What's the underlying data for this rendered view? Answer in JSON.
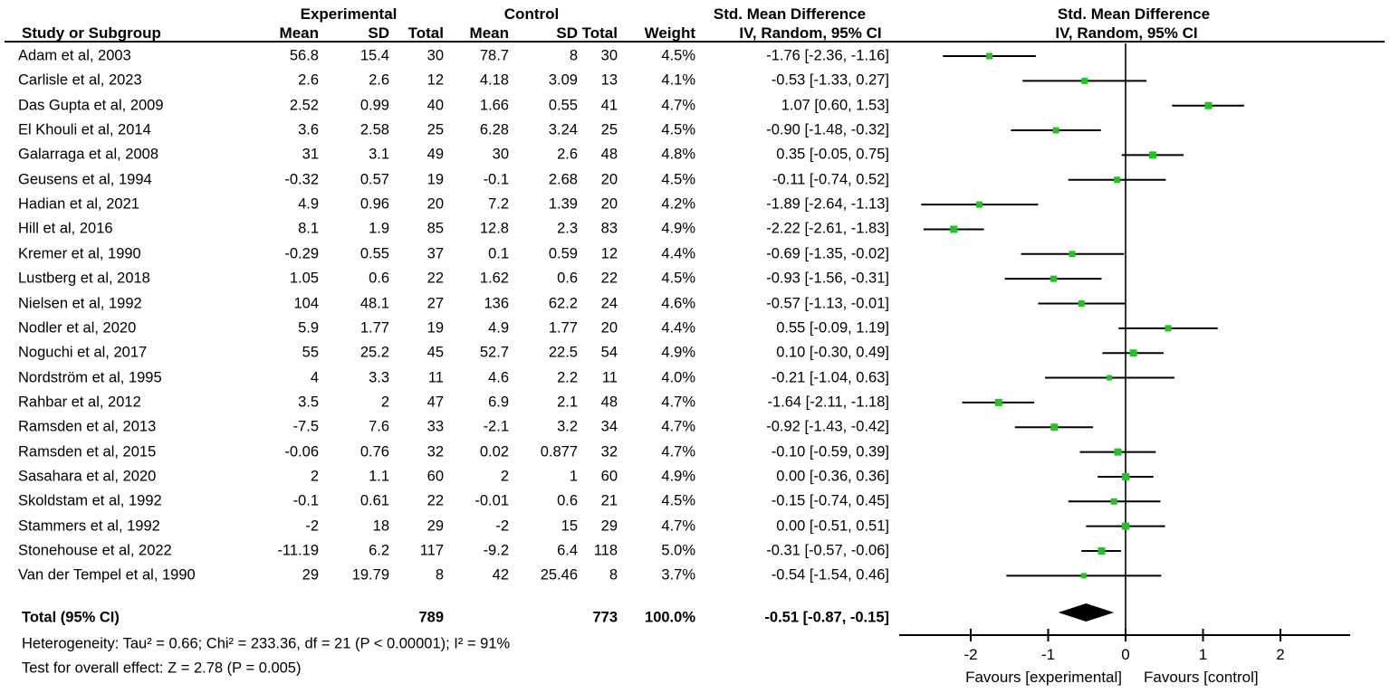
{
  "header": {
    "study_col": "Study or Subgroup",
    "experimental_group": "Experimental",
    "control_group": "Control",
    "exp_mean": "Mean",
    "exp_sd": "SD",
    "exp_total": "Total",
    "ctrl_mean": "Mean",
    "ctrl_sd": "SD",
    "ctrl_total": "Total",
    "weight": "Weight",
    "smd_title": "Std. Mean Difference",
    "smd_subtitle": "IV, Random, 95% CI",
    "plot_title": "Std. Mean Difference",
    "plot_subtitle": "IV, Random, 95% CI"
  },
  "studies": [
    {
      "name": "Adam et al, 2003",
      "exp_mean": "56.8",
      "exp_sd": "15.4",
      "exp_total": "30",
      "ctrl_mean": "78.7",
      "ctrl_sd": "8",
      "ctrl_total": "30",
      "weight": "4.5%",
      "ci_text": "-1.76 [-2.36, -1.16]"
    },
    {
      "name": "Carlisle et al, 2023",
      "exp_mean": "2.6",
      "exp_sd": "2.6",
      "exp_total": "12",
      "ctrl_mean": "4.18",
      "ctrl_sd": "3.09",
      "ctrl_total": "13",
      "weight": "4.1%",
      "ci_text": "-0.53 [-1.33, 0.27]"
    },
    {
      "name": "Das Gupta et al, 2009",
      "exp_mean": "2.52",
      "exp_sd": "0.99",
      "exp_total": "40",
      "ctrl_mean": "1.66",
      "ctrl_sd": "0.55",
      "ctrl_total": "41",
      "weight": "4.7%",
      "ci_text": "1.07 [0.60, 1.53]"
    },
    {
      "name": "El Khouli et al, 2014",
      "exp_mean": "3.6",
      "exp_sd": "2.58",
      "exp_total": "25",
      "ctrl_mean": "6.28",
      "ctrl_sd": "3.24",
      "ctrl_total": "25",
      "weight": "4.5%",
      "ci_text": "-0.90 [-1.48, -0.32]"
    },
    {
      "name": "Galarraga et al, 2008",
      "exp_mean": "31",
      "exp_sd": "3.1",
      "exp_total": "49",
      "ctrl_mean": "30",
      "ctrl_sd": "2.6",
      "ctrl_total": "48",
      "weight": "4.8%",
      "ci_text": "0.35 [-0.05, 0.75]"
    },
    {
      "name": "Geusens et al, 1994",
      "exp_mean": "-0.32",
      "exp_sd": "0.57",
      "exp_total": "19",
      "ctrl_mean": "-0.1",
      "ctrl_sd": "2.68",
      "ctrl_total": "20",
      "weight": "4.5%",
      "ci_text": "-0.11 [-0.74, 0.52]"
    },
    {
      "name": "Hadian et al, 2021",
      "exp_mean": "4.9",
      "exp_sd": "0.96",
      "exp_total": "20",
      "ctrl_mean": "7.2",
      "ctrl_sd": "1.39",
      "ctrl_total": "20",
      "weight": "4.2%",
      "ci_text": "-1.89 [-2.64, -1.13]"
    },
    {
      "name": "Hill et al, 2016",
      "exp_mean": "8.1",
      "exp_sd": "1.9",
      "exp_total": "85",
      "ctrl_mean": "12.8",
      "ctrl_sd": "2.3",
      "ctrl_total": "83",
      "weight": "4.9%",
      "ci_text": "-2.22 [-2.61, -1.83]"
    },
    {
      "name": "Kremer et al, 1990",
      "exp_mean": "-0.29",
      "exp_sd": "0.55",
      "exp_total": "37",
      "ctrl_mean": "0.1",
      "ctrl_sd": "0.59",
      "ctrl_total": "12",
      "weight": "4.4%",
      "ci_text": "-0.69 [-1.35, -0.02]"
    },
    {
      "name": "Lustberg et al, 2018",
      "exp_mean": "1.05",
      "exp_sd": "0.6",
      "exp_total": "22",
      "ctrl_mean": "1.62",
      "ctrl_sd": "0.6",
      "ctrl_total": "22",
      "weight": "4.5%",
      "ci_text": "-0.93 [-1.56, -0.31]"
    },
    {
      "name": "Nielsen et al, 1992",
      "exp_mean": "104",
      "exp_sd": "48.1",
      "exp_total": "27",
      "ctrl_mean": "136",
      "ctrl_sd": "62.2",
      "ctrl_total": "24",
      "weight": "4.6%",
      "ci_text": "-0.57 [-1.13, -0.01]"
    },
    {
      "name": "Nodler et al, 2020",
      "exp_mean": "5.9",
      "exp_sd": "1.77",
      "exp_total": "19",
      "ctrl_mean": "4.9",
      "ctrl_sd": "1.77",
      "ctrl_total": "20",
      "weight": "4.4%",
      "ci_text": "0.55 [-0.09, 1.19]"
    },
    {
      "name": "Noguchi et al, 2017",
      "exp_mean": "55",
      "exp_sd": "25.2",
      "exp_total": "45",
      "ctrl_mean": "52.7",
      "ctrl_sd": "22.5",
      "ctrl_total": "54",
      "weight": "4.9%",
      "ci_text": "0.10 [-0.30, 0.49]"
    },
    {
      "name": "Nordström et al, 1995",
      "exp_mean": "4",
      "exp_sd": "3.3",
      "exp_total": "11",
      "ctrl_mean": "4.6",
      "ctrl_sd": "2.2",
      "ctrl_total": "11",
      "weight": "4.0%",
      "ci_text": "-0.21 [-1.04, 0.63]"
    },
    {
      "name": "Rahbar et al, 2012",
      "exp_mean": "3.5",
      "exp_sd": "2",
      "exp_total": "47",
      "ctrl_mean": "6.9",
      "ctrl_sd": "2.1",
      "ctrl_total": "48",
      "weight": "4.7%",
      "ci_text": "-1.64 [-2.11, -1.18]"
    },
    {
      "name": "Ramsden et al, 2013",
      "exp_mean": "-7.5",
      "exp_sd": "7.6",
      "exp_total": "33",
      "ctrl_mean": "-2.1",
      "ctrl_sd": "3.2",
      "ctrl_total": "34",
      "weight": "4.7%",
      "ci_text": "-0.92 [-1.43, -0.42]"
    },
    {
      "name": "Ramsden et al, 2015",
      "exp_mean": "-0.06",
      "exp_sd": "0.76",
      "exp_total": "32",
      "ctrl_mean": "0.02",
      "ctrl_sd": "0.877",
      "ctrl_total": "32",
      "weight": "4.7%",
      "ci_text": "-0.10 [-0.59, 0.39]"
    },
    {
      "name": "Sasahara et al, 2020",
      "exp_mean": "2",
      "exp_sd": "1.1",
      "exp_total": "60",
      "ctrl_mean": "2",
      "ctrl_sd": "1",
      "ctrl_total": "60",
      "weight": "4.9%",
      "ci_text": "0.00 [-0.36, 0.36]"
    },
    {
      "name": "Skoldstam et al, 1992",
      "exp_mean": "-0.1",
      "exp_sd": "0.61",
      "exp_total": "22",
      "ctrl_mean": "-0.01",
      "ctrl_sd": "0.6",
      "ctrl_total": "21",
      "weight": "4.5%",
      "ci_text": "-0.15 [-0.74, 0.45]"
    },
    {
      "name": "Stammers et al, 1992",
      "exp_mean": "-2",
      "exp_sd": "18",
      "exp_total": "29",
      "ctrl_mean": "-2",
      "ctrl_sd": "15",
      "ctrl_total": "29",
      "weight": "4.7%",
      "ci_text": "0.00 [-0.51, 0.51]"
    },
    {
      "name": "Stonehouse et al, 2022",
      "exp_mean": "-11.19",
      "exp_sd": "6.2",
      "exp_total": "117",
      "ctrl_mean": "-9.2",
      "ctrl_sd": "6.4",
      "ctrl_total": "118",
      "weight": "5.0%",
      "ci_text": "-0.31 [-0.57, -0.06]"
    },
    {
      "name": "Van der Tempel et al, 1990",
      "exp_mean": "29",
      "exp_sd": "19.79",
      "exp_total": "8",
      "ctrl_mean": "42",
      "ctrl_sd": "25.46",
      "ctrl_total": "8",
      "weight": "3.7%",
      "ci_text": "-0.54 [-1.54, 0.46]"
    }
  ],
  "total_row": {
    "label": "Total (95% CI)",
    "exp_total": "789",
    "ctrl_total": "773",
    "weight": "100.0%",
    "ci_text": "-0.51 [-0.87, -0.15]"
  },
  "footnotes": {
    "heterogeneity": "Heterogeneity: Tau² = 0.66; Chi² = 233.36, df = 21 (P < 0.00001); I² = 91%",
    "overall_effect": "Test for overall effect: Z = 2.78 (P = 0.005)"
  },
  "chart_data": {
    "type": "forest",
    "title": "Std. Mean Difference",
    "method": "IV, Random, 95% CI",
    "x_ticks": [
      -2,
      -1,
      0,
      1,
      2
    ],
    "x_range": [
      -2.93,
      2.9
    ],
    "favours_left": "Favours [experimental]",
    "favours_right": "Favours [control]",
    "marker_color": "#21c421",
    "ci_color": "#000000",
    "diamond_color": "#000000",
    "studies": [
      {
        "name": "Adam et al, 2003",
        "est": -1.76,
        "lo": -2.36,
        "hi": -1.16,
        "weight_pct": 4.5
      },
      {
        "name": "Carlisle et al, 2023",
        "est": -0.53,
        "lo": -1.33,
        "hi": 0.27,
        "weight_pct": 4.1
      },
      {
        "name": "Das Gupta et al, 2009",
        "est": 1.07,
        "lo": 0.6,
        "hi": 1.53,
        "weight_pct": 4.7
      },
      {
        "name": "El Khouli et al, 2014",
        "est": -0.9,
        "lo": -1.48,
        "hi": -0.32,
        "weight_pct": 4.5
      },
      {
        "name": "Galarraga et al, 2008",
        "est": 0.35,
        "lo": -0.05,
        "hi": 0.75,
        "weight_pct": 4.8
      },
      {
        "name": "Geusens et al, 1994",
        "est": -0.11,
        "lo": -0.74,
        "hi": 0.52,
        "weight_pct": 4.5
      },
      {
        "name": "Hadian et al, 2021",
        "est": -1.89,
        "lo": -2.64,
        "hi": -1.13,
        "weight_pct": 4.2
      },
      {
        "name": "Hill et al, 2016",
        "est": -2.22,
        "lo": -2.61,
        "hi": -1.83,
        "weight_pct": 4.9
      },
      {
        "name": "Kremer et al, 1990",
        "est": -0.69,
        "lo": -1.35,
        "hi": -0.02,
        "weight_pct": 4.4
      },
      {
        "name": "Lustberg et al, 2018",
        "est": -0.93,
        "lo": -1.56,
        "hi": -0.31,
        "weight_pct": 4.5
      },
      {
        "name": "Nielsen et al, 1992",
        "est": -0.57,
        "lo": -1.13,
        "hi": -0.01,
        "weight_pct": 4.6
      },
      {
        "name": "Nodler et al, 2020",
        "est": 0.55,
        "lo": -0.09,
        "hi": 1.19,
        "weight_pct": 4.4
      },
      {
        "name": "Noguchi et al, 2017",
        "est": 0.1,
        "lo": -0.3,
        "hi": 0.49,
        "weight_pct": 4.9
      },
      {
        "name": "Nordström et al, 1995",
        "est": -0.21,
        "lo": -1.04,
        "hi": 0.63,
        "weight_pct": 4.0
      },
      {
        "name": "Rahbar et al, 2012",
        "est": -1.64,
        "lo": -2.11,
        "hi": -1.18,
        "weight_pct": 4.7
      },
      {
        "name": "Ramsden et al, 2013",
        "est": -0.92,
        "lo": -1.43,
        "hi": -0.42,
        "weight_pct": 4.7
      },
      {
        "name": "Ramsden et al, 2015",
        "est": -0.1,
        "lo": -0.59,
        "hi": 0.39,
        "weight_pct": 4.7
      },
      {
        "name": "Sasahara et al, 2020",
        "est": 0.0,
        "lo": -0.36,
        "hi": 0.36,
        "weight_pct": 4.9
      },
      {
        "name": "Skoldstam et al, 1992",
        "est": -0.15,
        "lo": -0.74,
        "hi": 0.45,
        "weight_pct": 4.5
      },
      {
        "name": "Stammers et al, 1992",
        "est": 0.0,
        "lo": -0.51,
        "hi": 0.51,
        "weight_pct": 4.7
      },
      {
        "name": "Stonehouse et al, 2022",
        "est": -0.31,
        "lo": -0.57,
        "hi": -0.06,
        "weight_pct": 5.0
      },
      {
        "name": "Van der Tempel et al, 1990",
        "est": -0.54,
        "lo": -1.54,
        "hi": 0.46,
        "weight_pct": 3.7
      }
    ],
    "total": {
      "label": "Total (95% CI)",
      "est": -0.51,
      "lo": -0.87,
      "hi": -0.15
    }
  }
}
